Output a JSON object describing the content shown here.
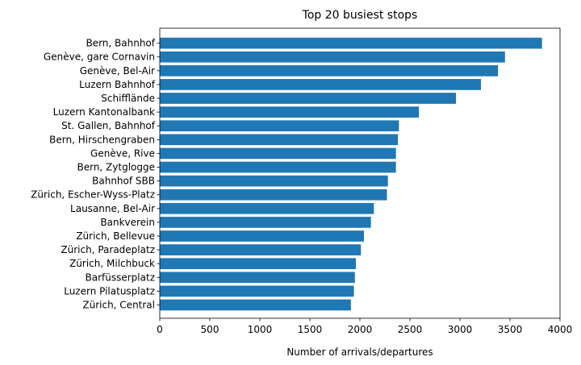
{
  "chart_data": {
    "type": "bar",
    "orientation": "horizontal",
    "title": "Top 20 busiest stops",
    "xlabel": "Number of arrivals/departures",
    "ylabel": "",
    "xlim": [
      0,
      4000
    ],
    "xticks": [
      0,
      500,
      1000,
      1500,
      2000,
      2500,
      3000,
      3500,
      4000
    ],
    "grid": false,
    "bar_color": "#1f77b4",
    "categories": [
      "Bern, Bahnhof",
      "Genève, gare Cornavin",
      "Genève, Bel-Air",
      "Luzern Bahnhof",
      "Schifflände",
      "Luzern Kantonalbank",
      "St. Gallen, Bahnhof",
      "Bern, Hirschengraben",
      "Genève, Rive",
      "Bern, Zytglogge",
      "Bahnhof SBB",
      "Zürich, Escher-Wyss-Platz",
      "Lausanne, Bel-Air",
      "Bankverein",
      "Zürich, Bellevue",
      "Zürich, Paradeplatz",
      "Zürich, Milchbuck",
      "Barfüsserplatz",
      "Luzern Pilatusplatz",
      "Zürich, Central"
    ],
    "values": [
      3820,
      3450,
      3380,
      3210,
      2960,
      2590,
      2390,
      2380,
      2360,
      2360,
      2280,
      2270,
      2140,
      2110,
      2040,
      2010,
      1960,
      1950,
      1940,
      1910
    ]
  }
}
